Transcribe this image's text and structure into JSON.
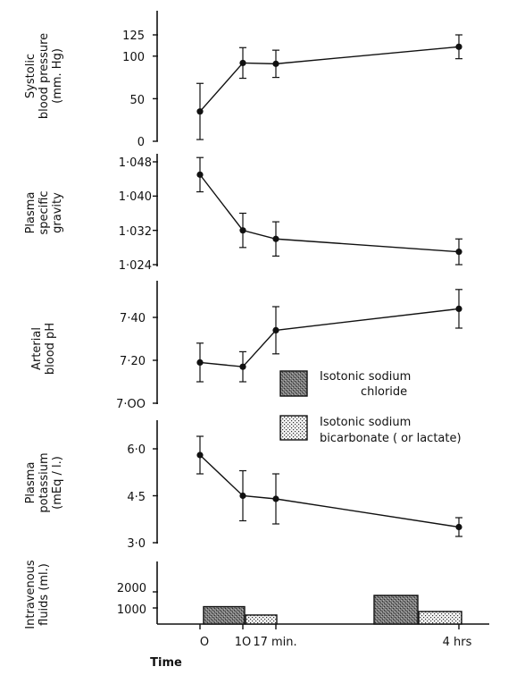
{
  "chart_data": [
    {
      "type": "line",
      "ylabel": [
        "Systolic",
        "blood pressure",
        "(mm. Hg)"
      ],
      "yticks": [
        "125",
        "100",
        "50",
        "0"
      ],
      "ytick_values": [
        125,
        100,
        50,
        0
      ],
      "ylim": [
        0,
        125
      ],
      "x": [
        0,
        10,
        17,
        240
      ],
      "values": [
        35,
        92,
        91,
        111
      ],
      "err": [
        33,
        18,
        16,
        14
      ]
    },
    {
      "type": "line",
      "ylabel": [
        "Plasma",
        "specific",
        "gravity"
      ],
      "yticks": [
        "1·048",
        "1·040",
        "1·032",
        "1·024"
      ],
      "ytick_values": [
        1.048,
        1.04,
        1.032,
        1.024
      ],
      "ylim": [
        1.024,
        1.048
      ],
      "x": [
        0,
        10,
        17,
        240
      ],
      "values": [
        1.045,
        1.032,
        1.03,
        1.027
      ],
      "err": [
        0.004,
        0.004,
        0.004,
        0.003
      ]
    },
    {
      "type": "line",
      "ylabel": [
        "Arterial",
        "blood pH"
      ],
      "yticks": [
        "7·40",
        "7·20",
        "7·OO"
      ],
      "ytick_values": [
        7.4,
        7.2,
        7.0
      ],
      "ylim": [
        7.0,
        7.5
      ],
      "x": [
        0,
        10,
        17,
        240
      ],
      "values": [
        7.19,
        7.17,
        7.34,
        7.44
      ],
      "err": [
        0.09,
        0.07,
        0.11,
        0.09
      ]
    },
    {
      "type": "line",
      "ylabel": [
        "Plasma",
        "potassium",
        "(mEq / l.)"
      ],
      "yticks": [
        "6·0",
        "4·5",
        "3·0"
      ],
      "ytick_values": [
        6.0,
        4.5,
        3.0
      ],
      "ylim": [
        3.0,
        7.0
      ],
      "x": [
        0,
        10,
        17,
        240
      ],
      "values": [
        5.8,
        4.5,
        4.4,
        3.5
      ],
      "err": [
        0.6,
        0.8,
        0.8,
        0.3
      ]
    },
    {
      "type": "bar",
      "ylabel": [
        "Intravenous",
        "fluids (ml.)"
      ],
      "yticks": [
        "2000",
        "1000"
      ],
      "ytick_values": [
        2000,
        1000
      ],
      "ylim": [
        0,
        2600
      ],
      "bars": [
        {
          "series": "Isotonic sodium chloride",
          "value": 1080
        },
        {
          "series": "Isotonic sodium bicarbonate (or lactate)",
          "value": 560
        },
        {
          "series": "Isotonic sodium chloride",
          "value": 1780
        },
        {
          "series": "Isotonic sodium bicarbonate (or lactate)",
          "value": 780
        }
      ]
    }
  ],
  "x_axis": {
    "label": "Time",
    "ticks": [
      "O",
      "1O",
      "17 min.",
      "4 hrs"
    ]
  },
  "legend": [
    {
      "lines": [
        "Isotonic  sodium",
        "chloride"
      ],
      "pattern": "dense"
    },
    {
      "lines": [
        "Isotonic sodium",
        "bicarbonate ( or lactate)"
      ],
      "pattern": "dots"
    }
  ],
  "colors": {
    "ink": "#111111",
    "chloride_fill": "#707070",
    "bicarbonate_fill": "#f2f2f2"
  }
}
